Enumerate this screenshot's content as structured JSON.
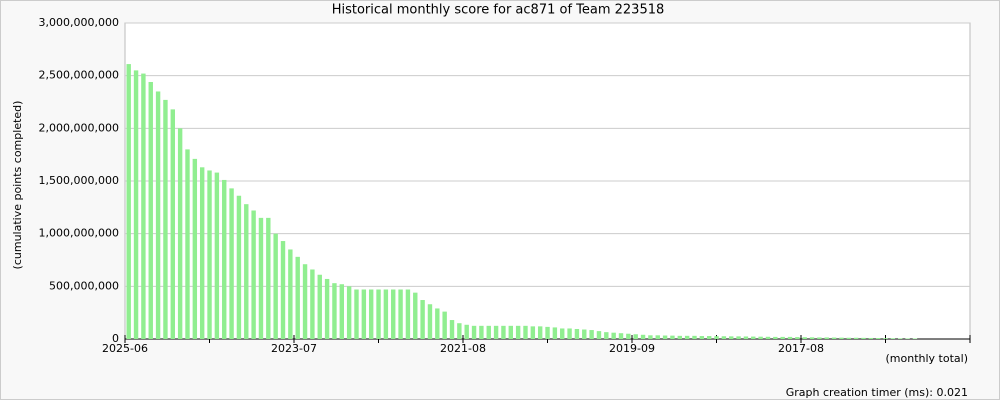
{
  "chart_data": {
    "type": "bar",
    "title": "Historical monthly score for ac871 of Team 223518",
    "y_label": "(cumulative points completed)",
    "x_label": "(monthly total)",
    "footer": "Graph creation timer (ms): 0.021",
    "color": "#90ee90",
    "grid": true,
    "ylim": [
      0,
      3000000000
    ],
    "yticks": [
      {
        "value": 0,
        "label": "0"
      },
      {
        "value": 500000000,
        "label": "500,000,000"
      },
      {
        "value": 1000000000,
        "label": "1,000,000,000"
      },
      {
        "value": 1500000000,
        "label": "1,500,000,000"
      },
      {
        "value": 2000000000,
        "label": "2,000,000,000"
      },
      {
        "value": 2500000000,
        "label": "2,500,000,000"
      },
      {
        "value": 3000000000,
        "label": "3,000,000,000"
      }
    ],
    "categories": [
      "2025-06",
      null,
      null,
      null,
      null,
      null,
      null,
      null,
      null,
      null,
      null,
      null,
      null,
      null,
      null,
      null,
      null,
      null,
      null,
      null,
      null,
      null,
      null,
      "2023-07",
      null,
      null,
      null,
      null,
      null,
      null,
      null,
      null,
      null,
      null,
      null,
      null,
      null,
      null,
      null,
      null,
      null,
      null,
      null,
      null,
      null,
      null,
      "2021-08",
      null,
      null,
      null,
      null,
      null,
      null,
      null,
      null,
      null,
      null,
      null,
      null,
      null,
      null,
      null,
      null,
      null,
      null,
      null,
      null,
      null,
      null,
      "2019-09",
      null,
      null,
      null,
      null,
      null,
      null,
      null,
      null,
      null,
      null,
      null,
      null,
      null,
      null,
      null,
      null,
      null,
      null,
      null,
      null,
      null,
      null,
      "2017-08",
      null,
      null,
      null,
      null,
      null,
      null,
      null,
      null,
      null,
      null,
      null,
      null,
      null,
      null,
      null,
      null,
      null,
      null,
      null,
      null,
      null,
      null
    ],
    "values": [
      2610000000,
      2550000000,
      2520000000,
      2440000000,
      2350000000,
      2270000000,
      2180000000,
      2000000000,
      1800000000,
      1710000000,
      1630000000,
      1600000000,
      1580000000,
      1510000000,
      1430000000,
      1360000000,
      1280000000,
      1220000000,
      1150000000,
      1150000000,
      1000000000,
      930000000,
      850000000,
      780000000,
      710000000,
      660000000,
      610000000,
      570000000,
      530000000,
      520000000,
      500000000,
      470000000,
      470000000,
      470000000,
      470000000,
      470000000,
      470000000,
      470000000,
      470000000,
      440000000,
      370000000,
      330000000,
      290000000,
      260000000,
      180000000,
      150000000,
      135000000,
      125000000,
      125000000,
      125000000,
      125000000,
      125000000,
      125000000,
      125000000,
      125000000,
      120000000,
      120000000,
      115000000,
      110000000,
      100000000,
      100000000,
      95000000,
      90000000,
      85000000,
      75000000,
      65000000,
      60000000,
      55000000,
      50000000,
      45000000,
      40000000,
      35000000,
      35000000,
      33000000,
      32000000,
      30000000,
      30000000,
      30000000,
      28000000,
      28000000,
      27000000,
      26000000,
      25000000,
      25000000,
      24000000,
      23000000,
      22000000,
      21000000,
      20000000,
      20000000,
      20000000,
      18000000,
      17000000,
      16000000,
      15000000,
      15000000,
      14000000,
      13000000,
      12000000,
      12000000,
      11000000,
      10000000,
      9000000,
      8000000,
      7000000,
      6000000,
      5000000,
      5000000,
      null,
      null,
      null,
      null,
      null,
      null,
      null
    ]
  }
}
